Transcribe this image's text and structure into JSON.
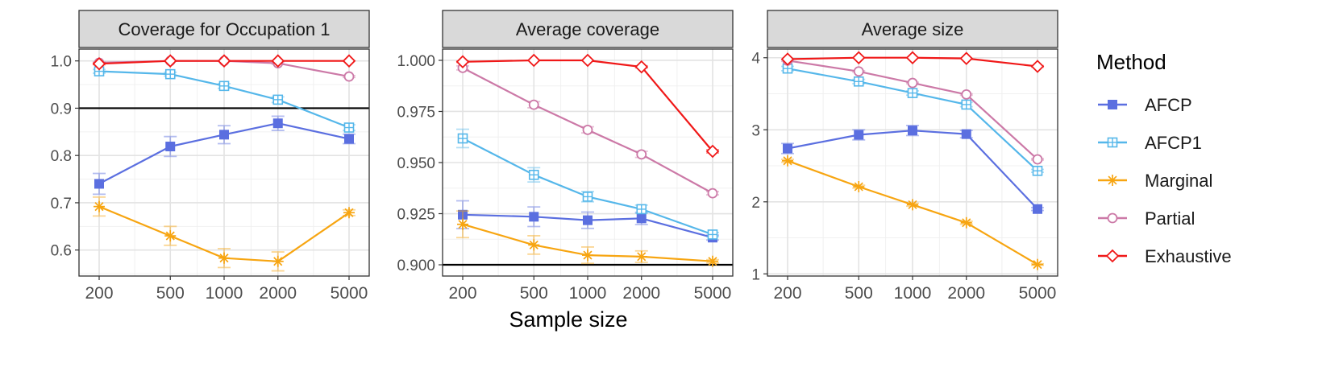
{
  "x_axis_label": "Sample size",
  "legend": {
    "title": "Method",
    "items": [
      {
        "name": "AFCP",
        "color": "#5b6fe0",
        "marker": "filled-square"
      },
      {
        "name": "AFCP1",
        "color": "#55b7ea",
        "marker": "boxed-plus"
      },
      {
        "name": "Marginal",
        "color": "#f7a511",
        "marker": "asterisk"
      },
      {
        "name": "Partial",
        "color": "#cc79a7",
        "marker": "open-circle"
      },
      {
        "name": "Exhaustive",
        "color": "#f01818",
        "marker": "open-diamond"
      }
    ]
  },
  "chart_data": [
    {
      "type": "line",
      "title": "Coverage for Occupation 1",
      "xlabel": "Sample size",
      "x_scale": "log",
      "categories": [
        "200",
        "500",
        "1000",
        "2000",
        "5000"
      ],
      "x": [
        200,
        500,
        1000,
        2000,
        5000
      ],
      "ylim": [
        0.545,
        1.025
      ],
      "yticks": [
        0.6,
        0.7,
        0.8,
        0.9,
        1.0
      ],
      "ytick_labels": [
        "0.6",
        "0.7",
        "0.8",
        "0.9",
        "1.0"
      ],
      "reference_line": 0.9,
      "series": [
        {
          "name": "AFCP",
          "values": [
            0.74,
            0.819,
            0.844,
            0.868,
            0.835
          ],
          "errors": [
            0.022,
            0.021,
            0.019,
            0.015,
            0.01
          ]
        },
        {
          "name": "AFCP1",
          "values": [
            0.978,
            0.972,
            0.947,
            0.918,
            0.859
          ],
          "errors": [
            0.004,
            0.004,
            0.005,
            0.006,
            0.006
          ]
        },
        {
          "name": "Marginal",
          "values": [
            0.692,
            0.63,
            0.583,
            0.576,
            0.679
          ],
          "errors": [
            0.02,
            0.02,
            0.02,
            0.02,
            0.006
          ]
        },
        {
          "name": "Partial",
          "values": [
            0.996,
            1.0,
            1.0,
            0.995,
            0.967
          ],
          "errors": [
            0.002,
            0.001,
            0.001,
            0.002,
            0.002
          ]
        },
        {
          "name": "Exhaustive",
          "values": [
            0.994,
            1.0,
            1.0,
            1.0,
            1.0
          ],
          "errors": [
            0.002,
            0.0,
            0.0,
            0.0,
            0.0
          ]
        }
      ]
    },
    {
      "type": "line",
      "title": "Average coverage",
      "xlabel": "Sample size",
      "x_scale": "log",
      "categories": [
        "200",
        "500",
        "1000",
        "2000",
        "5000"
      ],
      "x": [
        200,
        500,
        1000,
        2000,
        5000
      ],
      "ylim": [
        0.8945,
        1.0055
      ],
      "yticks": [
        0.9,
        0.925,
        0.95,
        0.975,
        1.0
      ],
      "ytick_labels": [
        "0.900",
        "0.925",
        "0.950",
        "0.975",
        "1.000"
      ],
      "reference_line": 0.9,
      "series": [
        {
          "name": "AFCP",
          "values": [
            0.9245,
            0.9235,
            0.9218,
            0.9227,
            0.9133
          ],
          "errors": [
            0.0068,
            0.0048,
            0.004,
            0.003,
            0.0012
          ]
        },
        {
          "name": "AFCP1",
          "values": [
            0.9618,
            0.944,
            0.9333,
            0.9272,
            0.9148
          ],
          "errors": [
            0.0045,
            0.0035,
            0.0025,
            0.002,
            0.001
          ]
        },
        {
          "name": "Marginal",
          "values": [
            0.9198,
            0.9097,
            0.9047,
            0.904,
            0.9017
          ],
          "errors": [
            0.0065,
            0.0045,
            0.004,
            0.0028,
            0.0008
          ]
        },
        {
          "name": "Partial",
          "values": [
            0.9963,
            0.9783,
            0.966,
            0.954,
            0.935
          ],
          "errors": [
            0.001,
            0.0015,
            0.0015,
            0.0015,
            0.0008
          ]
        },
        {
          "name": "Exhaustive",
          "values": [
            0.9993,
            1.0,
            1.0,
            0.9968,
            0.9555
          ],
          "errors": [
            0.0003,
            0.0,
            0.0,
            0.0005,
            0.0008
          ]
        }
      ]
    },
    {
      "type": "line",
      "title": "Average size",
      "xlabel": "Sample size",
      "x_scale": "log",
      "categories": [
        "200",
        "500",
        "1000",
        "2000",
        "5000"
      ],
      "x": [
        200,
        500,
        1000,
        2000,
        5000
      ],
      "ylim": [
        0.97,
        4.12
      ],
      "yticks": [
        1,
        2,
        3,
        4
      ],
      "ytick_labels": [
        "1",
        "2",
        "3",
        "4"
      ],
      "reference_line": null,
      "series": [
        {
          "name": "AFCP",
          "values": [
            2.74,
            2.93,
            2.99,
            2.94,
            1.9
          ],
          "errors": [
            0.07,
            0.07,
            0.07,
            0.05,
            0.02
          ]
        },
        {
          "name": "AFCP1",
          "values": [
            3.85,
            3.67,
            3.51,
            3.35,
            2.43
          ],
          "errors": [
            0.03,
            0.03,
            0.03,
            0.03,
            0.02
          ]
        },
        {
          "name": "Marginal",
          "values": [
            2.57,
            2.21,
            1.96,
            1.71,
            1.13
          ],
          "errors": [
            0.02,
            0.02,
            0.02,
            0.02,
            0.01
          ]
        },
        {
          "name": "Partial",
          "values": [
            3.96,
            3.81,
            3.65,
            3.49,
            2.59
          ],
          "errors": [
            0.01,
            0.01,
            0.01,
            0.01,
            0.01
          ]
        },
        {
          "name": "Exhaustive",
          "values": [
            3.98,
            4.0,
            4.0,
            3.99,
            3.88
          ],
          "errors": [
            0.0,
            0.0,
            0.0,
            0.0,
            0.01
          ]
        }
      ]
    }
  ]
}
